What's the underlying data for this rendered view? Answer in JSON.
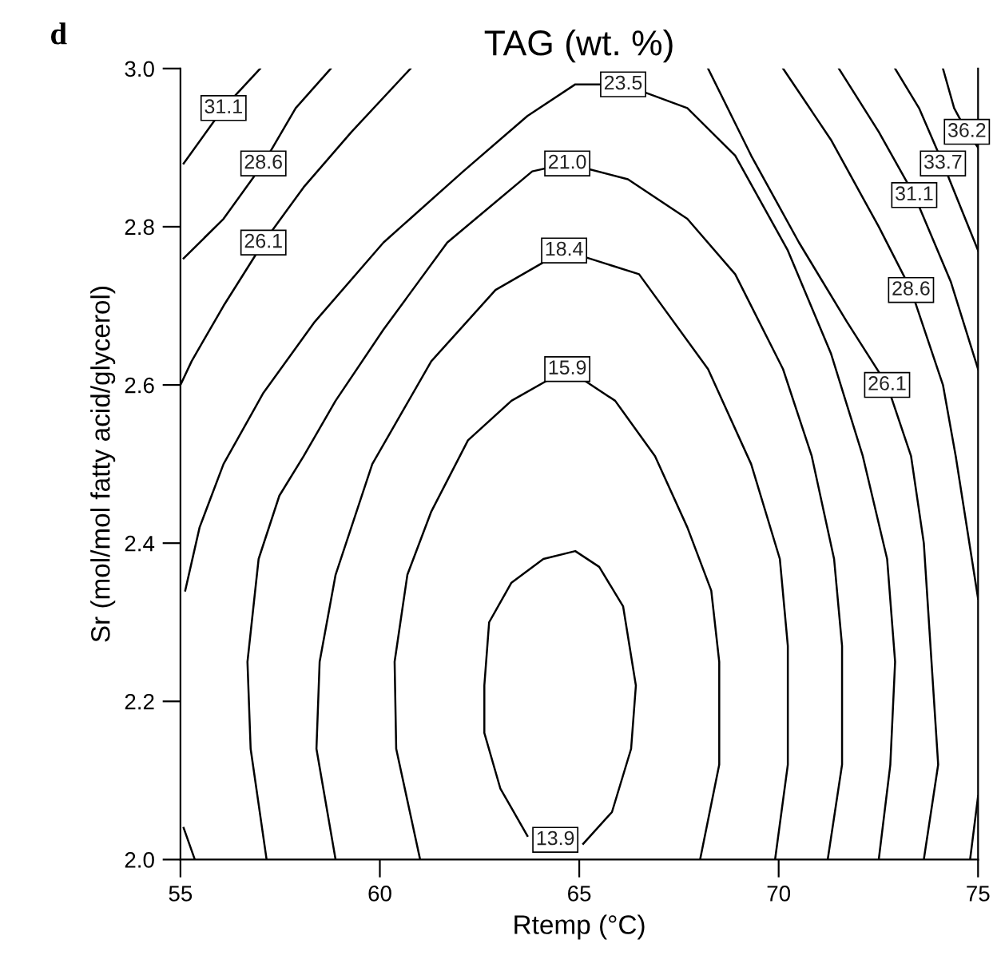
{
  "chart_data": {
    "type": "line",
    "title": "TAG (wt. %)",
    "xlabel": "Rtemp (°C)",
    "ylabel": "Sr (mol/mol fatty acid/glycerol)",
    "annotations": [
      "d"
    ],
    "xlim": [
      55,
      75
    ],
    "xticks": [
      55,
      60,
      65,
      70,
      75
    ],
    "ylim": [
      2,
      3
    ],
    "yticks": [
      {
        "value": 2,
        "label": "2.0"
      },
      2.2,
      2.4,
      2.6,
      2.8,
      {
        "value": 3,
        "label": "3.0"
      }
    ],
    "grid": false,
    "legend": false,
    "marker": "none",
    "line_style": "solid",
    "series": [
      {
        "name": "13.9",
        "color": "#000000",
        "x": [
          65.1,
          65.82,
          66.3,
          66.42,
          66.1,
          65.5,
          64.9,
          64.1,
          63.3,
          62.74,
          62.62,
          62.62,
          63.02,
          63.7
        ],
        "values": [
          2.02,
          2.06,
          2.14,
          2.22,
          2.32,
          2.37,
          2.39,
          2.38,
          2.35,
          2.3,
          2.22,
          2.16,
          2.09,
          2.03
        ]
      },
      {
        "name": "15.9",
        "color": "#000000",
        "x": [
          61.01,
          60.41,
          60.37,
          60.69,
          61.29,
          62.21,
          63.3,
          64.7,
          65.9,
          66.9,
          67.71,
          68.31,
          68.51,
          68.51,
          68.03
        ],
        "values": [
          2.0,
          2.14,
          2.25,
          2.36,
          2.44,
          2.53,
          2.58,
          2.62,
          2.58,
          2.51,
          2.42,
          2.34,
          2.25,
          2.12,
          2.0
        ]
      },
      {
        "name": "18.4",
        "color": "#000000",
        "x": [
          58.89,
          58.41,
          58.49,
          58.89,
          59.81,
          61.29,
          62.9,
          64.62,
          66.5,
          68.23,
          69.31,
          70.03,
          70.23,
          70.23,
          69.91
        ],
        "values": [
          2.0,
          2.14,
          2.25,
          2.36,
          2.5,
          2.63,
          2.72,
          2.77,
          2.74,
          2.62,
          2.5,
          2.38,
          2.27,
          2.12,
          2.0
        ]
      },
      {
        "name": "21.0",
        "color": "#000000",
        "x": [
          57.16,
          56.76,
          56.68,
          56.96,
          57.48,
          58.09,
          58.89,
          60.09,
          61.69,
          63.82,
          64.7,
          66.22,
          67.71,
          68.91,
          70.11,
          70.83,
          71.39,
          71.59,
          71.59,
          71.23
        ],
        "values": [
          2.0,
          2.14,
          2.25,
          2.38,
          2.46,
          2.51,
          2.58,
          2.67,
          2.78,
          2.87,
          2.88,
          2.86,
          2.81,
          2.74,
          2.62,
          2.51,
          2.38,
          2.27,
          2.12,
          2.0
        ]
      },
      {
        "color": "#000000",
        "x": [
          55.36,
          55.08
        ],
        "values": [
          2.0,
          2.04
        ]
      },
      {
        "name": "23.5",
        "color": "#000000",
        "x": [
          55.12,
          55.48,
          56.08,
          57.08,
          58.37,
          60.09,
          62.09,
          63.7,
          64.9,
          66.1,
          67.71,
          68.91,
          70.23,
          71.31,
          72.11,
          72.72,
          72.92,
          72.8,
          72.51
        ],
        "values": [
          2.34,
          2.42,
          2.5,
          2.59,
          2.68,
          2.78,
          2.87,
          2.94,
          2.98,
          2.98,
          2.95,
          2.89,
          2.77,
          2.64,
          2.51,
          2.38,
          2.25,
          2.12,
          2.0
        ]
      },
      {
        "name": "26.1",
        "color": "#000000",
        "x": [
          60.77,
          59.29,
          58.09,
          57.08,
          56.08,
          55.28,
          55.0
        ],
        "values": [
          3.0,
          2.92,
          2.85,
          2.78,
          2.7,
          2.63,
          2.6
        ]
      },
      {
        "name": "26.1",
        "color": "#000000",
        "x": [
          68.23,
          69.31,
          70.51,
          71.71,
          72.72,
          73.32,
          73.64,
          74.0,
          73.64
        ],
        "values": [
          3.0,
          2.89,
          2.78,
          2.68,
          2.6,
          2.51,
          2.4,
          2.12,
          2.0
        ]
      },
      {
        "name": "28.6",
        "color": "#000000",
        "x": [
          58.77,
          57.89,
          57.08,
          56.08,
          55.08
        ],
        "values": [
          3.0,
          2.95,
          2.88,
          2.81,
          2.76
        ]
      },
      {
        "name": "28.6",
        "color": "#000000",
        "x": [
          70.11,
          71.31,
          72.51,
          73.32,
          74.12,
          74.44,
          75.0
        ],
        "values": [
          3.0,
          2.91,
          2.8,
          2.72,
          2.6,
          2.51,
          2.33
        ]
      },
      {
        "color": "#000000",
        "x": [
          75.0,
          74.8
        ],
        "values": [
          2.08,
          2.0
        ]
      },
      {
        "name": "31.1",
        "color": "#000000",
        "x": [
          57.0,
          56.08,
          55.08
        ],
        "values": [
          3.0,
          2.95,
          2.88
        ]
      },
      {
        "name": "31.1",
        "color": "#000000",
        "x": [
          71.51,
          72.51,
          73.4,
          74.32,
          75.0
        ],
        "values": [
          3.0,
          2.92,
          2.84,
          2.73,
          2.62
        ]
      },
      {
        "name": "33.7",
        "color": "#000000",
        "x": [
          72.92,
          73.52,
          74.12,
          74.52,
          75.0
        ],
        "values": [
          3.0,
          2.95,
          2.88,
          2.83,
          2.77
        ]
      },
      {
        "name": "36.2",
        "color": "#000000",
        "x": [
          74.12,
          74.4,
          74.72,
          75.0
        ],
        "values": [
          3.0,
          2.95,
          2.92,
          2.9
        ]
      }
    ]
  }
}
